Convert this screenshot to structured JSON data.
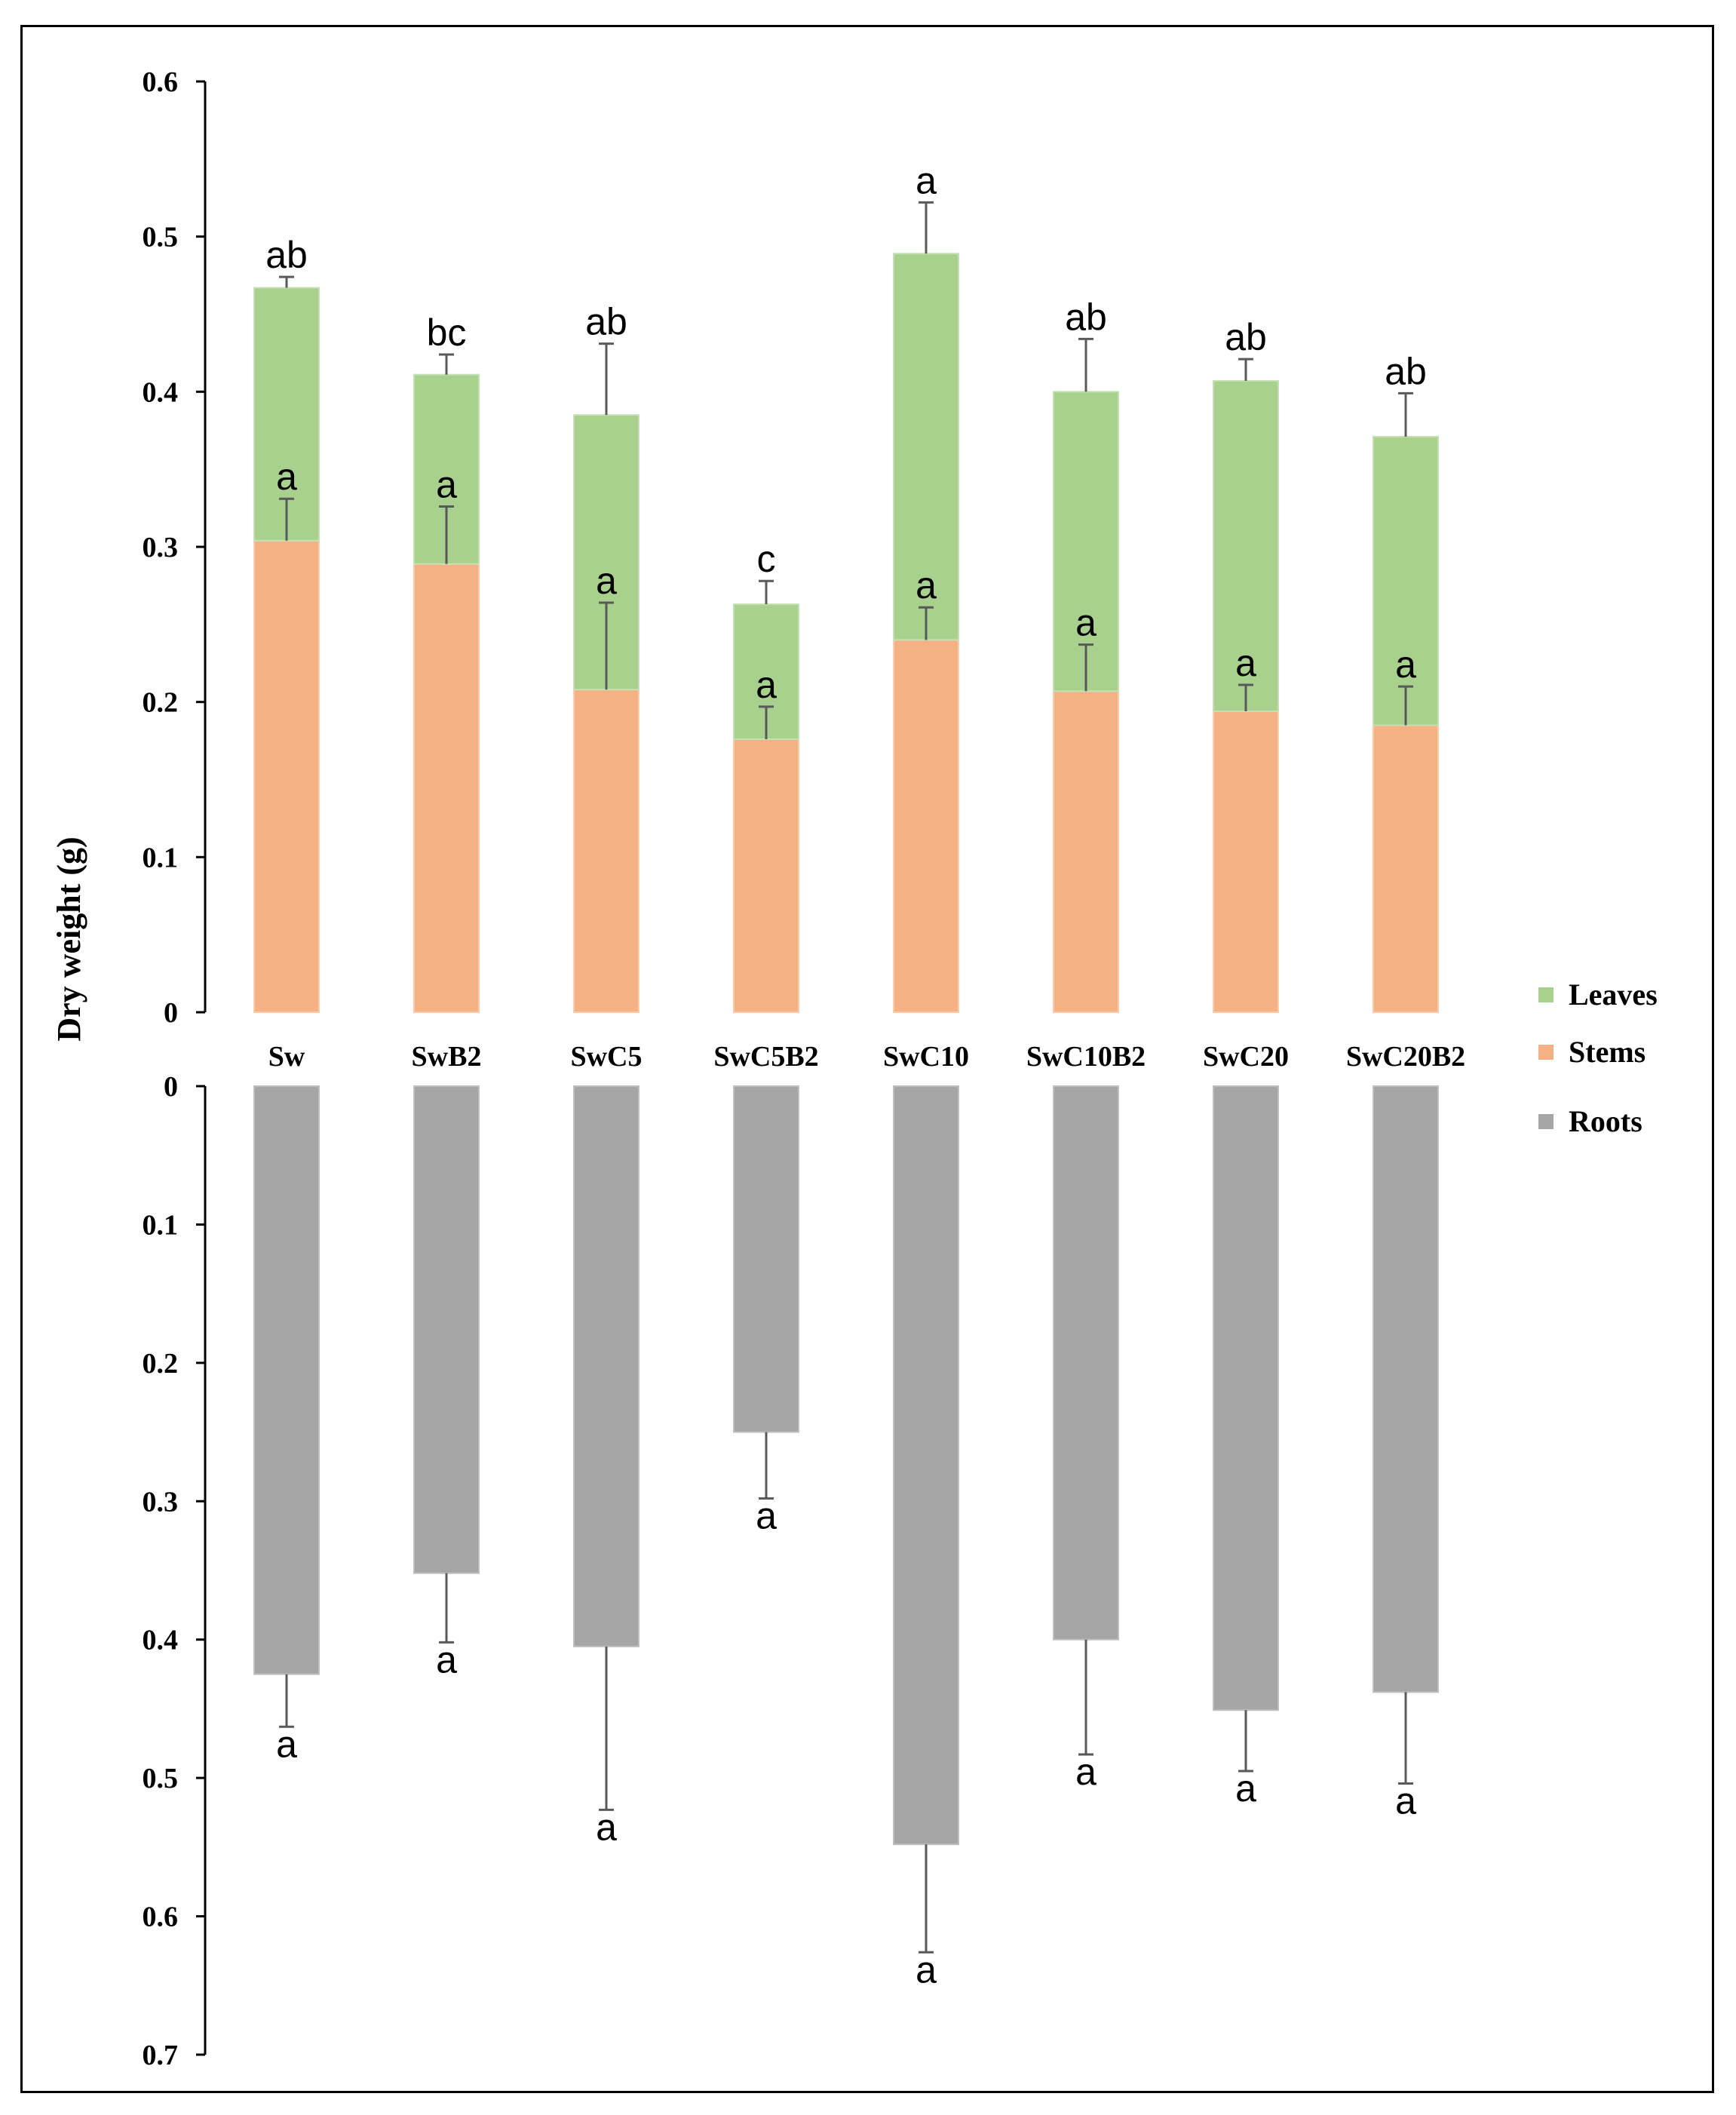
{
  "chart_data": {
    "type": "bar",
    "subtype": "stacked-mirrored",
    "ylabel": "Dry weight (g)",
    "categories": [
      "Sw",
      "SwB2",
      "SwC5",
      "SwC5B2",
      "SwC10",
      "SwC10B2",
      "SwC20",
      "SwC20B2"
    ],
    "top_panel": {
      "ylim": [
        0,
        0.6
      ],
      "ticks": [
        "0",
        "0.1",
        "0.2",
        "0.3",
        "0.4",
        "0.5",
        "0.6"
      ],
      "series": [
        {
          "name": "Stems",
          "color": "#F4B183",
          "values": [
            0.304,
            0.289,
            0.208,
            0.176,
            0.24,
            0.207,
            0.194,
            0.185
          ],
          "errors": [
            0.027,
            0.037,
            0.056,
            0.021,
            0.021,
            0.03,
            0.017,
            0.025
          ],
          "labels": [
            "a",
            "a",
            "a",
            "a",
            "a",
            "a",
            "a",
            "a"
          ]
        },
        {
          "name": "Leaves",
          "color": "#A9D18E",
          "values": [
            0.163,
            0.122,
            0.177,
            0.087,
            0.249,
            0.193,
            0.213,
            0.186
          ],
          "errors": [
            0.007,
            0.013,
            0.046,
            0.015,
            0.033,
            0.034,
            0.014,
            0.028
          ],
          "labels": [
            "ab",
            "bc",
            "ab",
            "c",
            "a",
            "ab",
            "ab",
            "ab"
          ]
        }
      ]
    },
    "bottom_panel": {
      "ylim": [
        0,
        0.7
      ],
      "ticks": [
        "0",
        "0.1",
        "0.2",
        "0.3",
        "0.4",
        "0.5",
        "0.6",
        "0.7"
      ],
      "series": [
        {
          "name": "Roots",
          "color": "#A6A6A6",
          "values": [
            0.425,
            0.352,
            0.405,
            0.25,
            0.548,
            0.4,
            0.451,
            0.438
          ],
          "errors": [
            0.038,
            0.05,
            0.118,
            0.048,
            0.078,
            0.083,
            0.044,
            0.066
          ],
          "labels": [
            "a",
            "a",
            "a",
            "a",
            "a",
            "a",
            "a",
            "a"
          ]
        }
      ]
    },
    "legend": {
      "position": "right",
      "items": [
        {
          "name": "Leaves",
          "color": "#A9D18E"
        },
        {
          "name": "Stems",
          "color": "#F4B183"
        },
        {
          "name": "Roots",
          "color": "#A6A6A6"
        }
      ]
    }
  }
}
